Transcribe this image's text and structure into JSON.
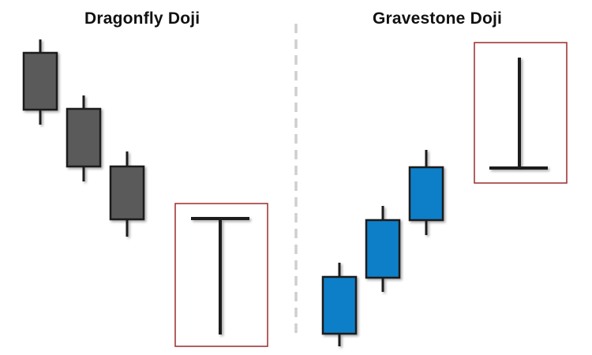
{
  "left_panel": {
    "title": "Dragonfly Doji",
    "candles": [
      {
        "kind": "bearish"
      },
      {
        "kind": "bearish"
      },
      {
        "kind": "bearish"
      }
    ],
    "pattern": {
      "kind": "dragonfly-doji",
      "highlighted": true
    }
  },
  "right_panel": {
    "title": "Gravestone Doji",
    "candles": [
      {
        "kind": "bullish"
      },
      {
        "kind": "bullish"
      },
      {
        "kind": "bullish"
      }
    ],
    "pattern": {
      "kind": "gravestone-doji",
      "highlighted": true
    }
  },
  "divider": {
    "style": "dashed"
  },
  "colors": {
    "bearish_body": "#5a5a5a",
    "bullish_body": "#0a7fc9",
    "outline": "#1a1a1a",
    "wick": "#1a1a1a",
    "highlight_box": "#9b2b2b",
    "divider": "#cfcfcf",
    "background": "#ffffff"
  }
}
